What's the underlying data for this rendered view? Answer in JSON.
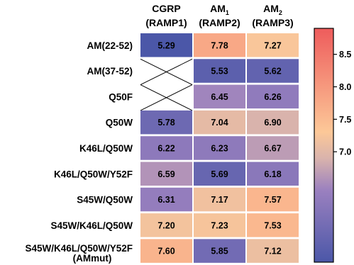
{
  "chart_data": {
    "type": "heatmap",
    "columns": [
      {
        "main": "CGRP",
        "sub": "",
        "receptor": "(RAMP1)"
      },
      {
        "main": "AM",
        "sub": "1",
        "receptor": "(RAMP2)"
      },
      {
        "main": "AM",
        "sub": "2",
        "receptor": "(RAMP3)"
      }
    ],
    "rows": [
      {
        "label": "AM(22-52)",
        "label2": ""
      },
      {
        "label": "AM(37-52)",
        "label2": ""
      },
      {
        "label": "Q50F",
        "label2": ""
      },
      {
        "label": "Q50W",
        "label2": ""
      },
      {
        "label": "K46L/Q50W",
        "label2": ""
      },
      {
        "label": "K46L/Q50W/Y52F",
        "label2": ""
      },
      {
        "label": "S45W/Q50W",
        "label2": ""
      },
      {
        "label": "S45W/K46L/Q50W",
        "label2": ""
      },
      {
        "label": "S45W/K46L/Q50W/Y52F",
        "label2": "(AMmut)"
      }
    ],
    "values": [
      [
        5.29,
        7.78,
        7.27
      ],
      [
        null,
        5.53,
        5.62
      ],
      [
        null,
        6.45,
        6.26
      ],
      [
        5.78,
        7.04,
        6.9
      ],
      [
        6.22,
        6.23,
        6.67
      ],
      [
        6.59,
        5.69,
        6.18
      ],
      [
        6.31,
        7.17,
        7.57
      ],
      [
        7.2,
        7.23,
        7.53
      ],
      [
        7.6,
        5.85,
        7.12
      ]
    ],
    "value_labels": [
      [
        "5.29",
        "7.78",
        "7.27"
      ],
      [
        "",
        "5.53",
        "5.62"
      ],
      [
        "",
        "6.45",
        "6.26"
      ],
      [
        "5.78",
        "7.04",
        "6.90"
      ],
      [
        "6.22",
        "6.23",
        "6.67"
      ],
      [
        "6.59",
        "5.69",
        "6.18"
      ],
      [
        "6.31",
        "7.17",
        "7.57"
      ],
      [
        "7.20",
        "7.23",
        "7.53"
      ],
      [
        "7.60",
        "5.85",
        "7.12"
      ]
    ],
    "missing_marker": "cross",
    "colorbar": {
      "range": [
        5.3,
        8.9
      ],
      "ticks": [
        7.0,
        7.5,
        8.0,
        8.5
      ],
      "tick_labels": [
        "7.0",
        "7.5",
        "8.0",
        "8.5"
      ],
      "colors": {
        "low": "#4b57a8",
        "mid_low": "#9a80bf",
        "mid": "#d9b3ac",
        "mid_high": "#fcc898",
        "high": "#ee5c5c"
      }
    }
  }
}
